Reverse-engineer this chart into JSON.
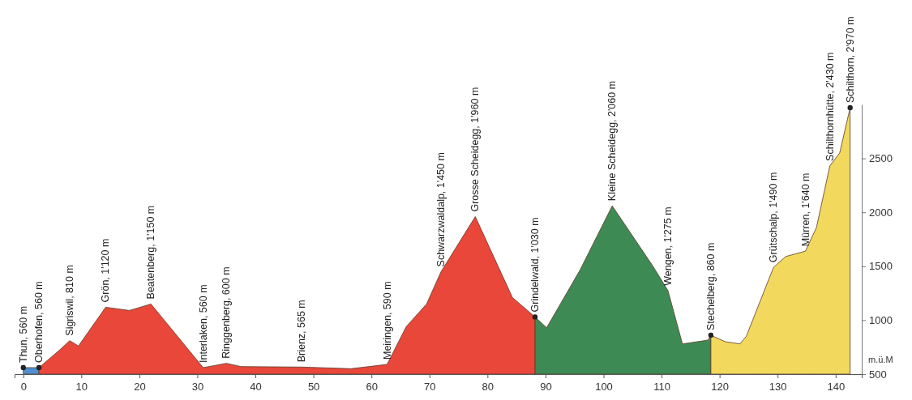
{
  "chart_data": {
    "type": "area",
    "ylabel": "m.ü.M",
    "xlim": [
      -1.5,
      144.5
    ],
    "xticks": [
      0,
      10,
      20,
      30,
      40,
      50,
      60,
      70,
      80,
      90,
      100,
      110,
      120,
      130,
      140
    ],
    "ylim": [
      500,
      3000
    ],
    "yticks": [
      500,
      1000,
      1500,
      2000,
      2500
    ],
    "series": [
      {
        "color": "#4f8fd0",
        "x": [
          0,
          2.7
        ],
        "values": [
          560,
          560
        ]
      },
      {
        "color": "#e8473a",
        "x": [
          2.7,
          6.3,
          8,
          9.5,
          14.2,
          18.3,
          22,
          31,
          35,
          37.5,
          48,
          56.5,
          62.7,
          66,
          69.5,
          72,
          77.9,
          84.3,
          88.2
        ],
        "values": [
          560,
          725,
          810,
          760,
          1120,
          1090,
          1150,
          560,
          600,
          570,
          565,
          550,
          590,
          940,
          1150,
          1450,
          1960,
          1210,
          1030
        ]
      },
      {
        "color": "#3e8a55",
        "x": [
          88.2,
          90.2,
          96,
          101.5,
          108.4,
          111.1,
          113.6,
          118,
          118.5
        ],
        "values": [
          1030,
          930,
          1470,
          2060,
          1510,
          1275,
          780,
          815,
          860
        ]
      },
      {
        "color": "#f2d85c",
        "x": [
          118.5,
          121,
          123.5,
          124.6,
          129.3,
          131.4,
          134.8,
          136.7,
          139,
          140.7,
          142.5
        ],
        "values": [
          860,
          800,
          780,
          850,
          1490,
          1590,
          1640,
          1860,
          2430,
          2550,
          2970
        ]
      },
      {
        "type": "scatter",
        "color": "#222222",
        "marker": "circle",
        "x": [
          0,
          2.7,
          88.2,
          118.5,
          142.5
        ],
        "values": [
          560,
          560,
          1030,
          860,
          2970
        ]
      }
    ],
    "annotations": [
      {
        "text": "Thun, 560 m",
        "x": 0,
        "y": 560
      },
      {
        "text": "Oberhofen, 560 m",
        "x": 2.7,
        "y": 560
      },
      {
        "text": "Sigriswil, 810 m",
        "x": 8,
        "y": 810
      },
      {
        "text": "Grön, 1'120 m",
        "x": 14.2,
        "y": 1120
      },
      {
        "text": "Beatenberg, 1'150 m",
        "x": 22,
        "y": 1150
      },
      {
        "text": "Interlaken, 560 m",
        "x": 31,
        "y": 560
      },
      {
        "text": "Ringgenberg, 600 m",
        "x": 35,
        "y": 600
      },
      {
        "text": "Brienz, 565 m",
        "x": 48,
        "y": 565
      },
      {
        "text": "Meiringen, 590 m",
        "x": 62.7,
        "y": 590
      },
      {
        "text": "Schwarzwaldalp, 1'450 m",
        "x": 72,
        "y": 1450
      },
      {
        "text": "Grosse Scheidegg, 1'960 m",
        "x": 77.9,
        "y": 1960
      },
      {
        "text": "Grindelwald, 1'030 m",
        "x": 88.2,
        "y": 1030
      },
      {
        "text": "Kleine Scheidegg, 2'060 m",
        "x": 101.5,
        "y": 2060
      },
      {
        "text": "Wengen, 1'275 m",
        "x": 111.1,
        "y": 1275
      },
      {
        "text": "Stechelberg, 860 m",
        "x": 118.5,
        "y": 860
      },
      {
        "text": "Grütschalp, 1'490 m",
        "x": 129.3,
        "y": 1490
      },
      {
        "text": "Mürren, 1'640 m",
        "x": 134.8,
        "y": 1640
      },
      {
        "text": "Schilthornhütte, 2'430 m",
        "x": 139,
        "y": 2430
      },
      {
        "text": "Schilthorn, 2'970 m",
        "x": 142.5,
        "y": 2970
      }
    ]
  }
}
